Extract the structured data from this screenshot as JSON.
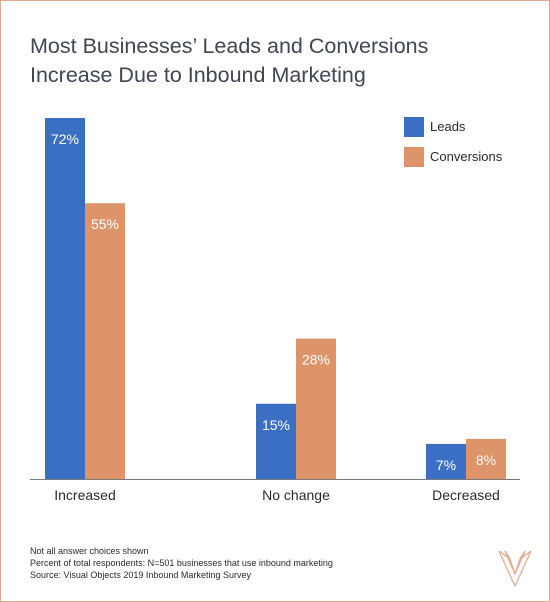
{
  "title_lines": [
    "Most Businesses’ Leads and Conversions",
    "Increase Due to Inbound Marketing"
  ],
  "footnotes": [
    "Not all answer choices shown",
    "Percent of total respondents: N=501 businesses that use inbound marketing",
    "Source: Visual Objects 2019 Inbound Marketing Survey"
  ],
  "logo_icon": "visual-objects-v-logo",
  "colors": {
    "leads": "#3a6fc4",
    "conversions": "#dc9468",
    "border": "#e2a98c",
    "text": "#3f4654"
  },
  "chart_data": {
    "type": "bar",
    "title": "Most Businesses’ Leads and Conversions Increase Due to Inbound Marketing",
    "categories": [
      "Increased",
      "No change",
      "Decreased"
    ],
    "series": [
      {
        "name": "Leads",
        "values": [
          72,
          15,
          7
        ],
        "labels": [
          "72%",
          "15%",
          "7%"
        ],
        "color": "#3a6fc4"
      },
      {
        "name": "Conversions",
        "values": [
          55,
          28,
          8
        ],
        "labels": [
          "55%",
          "28%",
          "8%"
        ],
        "color": "#dc9468"
      }
    ],
    "ylim": [
      0,
      72
    ],
    "unit": "%",
    "legend": "top-right",
    "grid": false
  }
}
